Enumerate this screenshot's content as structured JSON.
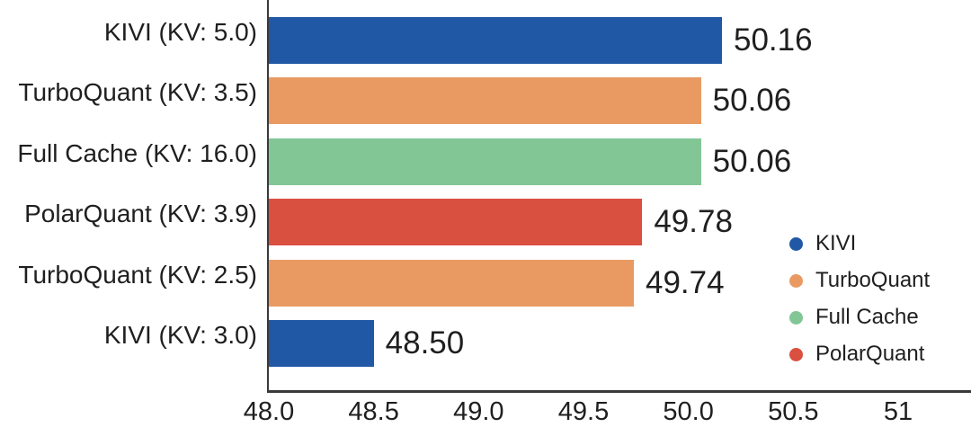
{
  "chart_data": {
    "type": "bar",
    "orientation": "horizontal",
    "title": "",
    "xlabel": "",
    "ylabel": "",
    "categories": [
      "KIVI (KV: 5.0)",
      "TurboQuant (KV: 3.5)",
      "Full Cache (KV: 16.0)",
      "PolarQuant (KV: 3.9)",
      "TurboQuant (KV: 2.5)",
      "KIVI (KV: 3.0)"
    ],
    "values": [
      50.16,
      50.06,
      50.06,
      49.78,
      49.74,
      48.5
    ],
    "value_labels": [
      "50.16",
      "50.06",
      "50.06",
      "49.78",
      "49.74",
      "48.50"
    ],
    "bar_series": [
      "KIVI",
      "TurboQuant",
      "Full Cache",
      "PolarQuant",
      "TurboQuant",
      "KIVI"
    ],
    "palette": {
      "KIVI": "#2158A6",
      "TurboQuant": "#E89A62",
      "Full Cache": "#82C696",
      "PolarQuant": "#D94F40"
    },
    "axis_color": "#3A3A3A",
    "text_color": "#1F1F1F",
    "xlim": [
      48,
      51.33
    ],
    "x_ticks": [
      {
        "value": 48.0,
        "label": "48.0"
      },
      {
        "value": 48.5,
        "label": "48.5"
      },
      {
        "value": 49.0,
        "label": "49.0"
      },
      {
        "value": 49.5,
        "label": "49.5"
      },
      {
        "value": 50.0,
        "label": "50.0"
      },
      {
        "value": 50.5,
        "label": "50.5"
      },
      {
        "value": 51.0,
        "label": "51"
      }
    ],
    "grid": false,
    "legend_position": "right-center",
    "legend": [
      {
        "label": "KIVI",
        "series": "KIVI"
      },
      {
        "label": "TurboQuant",
        "series": "TurboQuant"
      },
      {
        "label": "Full Cache",
        "series": "Full Cache"
      },
      {
        "label": "PolarQuant",
        "series": "PolarQuant"
      }
    ]
  }
}
